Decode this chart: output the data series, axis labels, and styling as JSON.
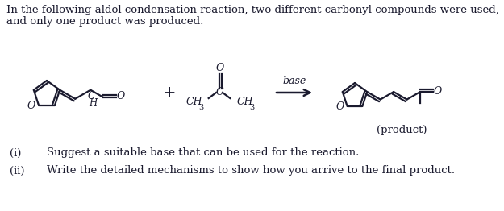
{
  "background_color": "#ffffff",
  "title_line1": "In the following aldol condensation reaction, two different carbonyl compounds were used,",
  "title_line2": "and only one product was produced.",
  "text_color": "#1a1a2e",
  "structure_color": "#1a1a2e",
  "question_i_label": "(i)",
  "question_i_text": "Suggest a suitable base that can be used for the reaction.",
  "question_ii_label": "(ii)",
  "question_ii_text": "Write the detailed mechanisms to show how you arrive to the final product.  ",
  "product_label": "(product)",
  "base_label": "base"
}
